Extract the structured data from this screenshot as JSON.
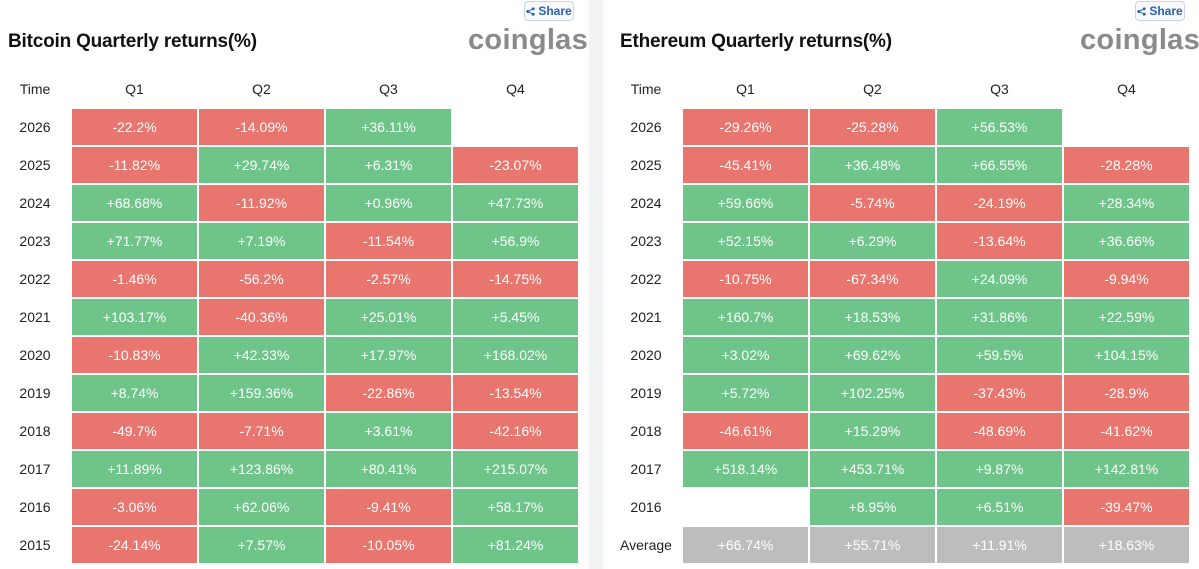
{
  "colors": {
    "negative": "#e8766f",
    "positive": "#6fc48a",
    "average": "#bdbdbd",
    "brand": "#8a8a8a"
  },
  "icons": {
    "share": "share-icon"
  },
  "panels": [
    {
      "title": "Bitcoin Quarterly returns(%)",
      "brand": "coinglass",
      "share_label": "Share",
      "headers": [
        "Time",
        "Q1",
        "Q2",
        "Q3",
        "Q4"
      ],
      "rows": [
        {
          "label": "2026",
          "values": [
            "-22.2%",
            "-14.09%",
            "+36.11%",
            ""
          ]
        },
        {
          "label": "2025",
          "values": [
            "-11.82%",
            "+29.74%",
            "+6.31%",
            "-23.07%"
          ]
        },
        {
          "label": "2024",
          "values": [
            "+68.68%",
            "-11.92%",
            "+0.96%",
            "+47.73%"
          ]
        },
        {
          "label": "2023",
          "values": [
            "+71.77%",
            "+7.19%",
            "-11.54%",
            "+56.9%"
          ]
        },
        {
          "label": "2022",
          "values": [
            "-1.46%",
            "-56.2%",
            "-2.57%",
            "-14.75%"
          ]
        },
        {
          "label": "2021",
          "values": [
            "+103.17%",
            "-40.36%",
            "+25.01%",
            "+5.45%"
          ]
        },
        {
          "label": "2020",
          "values": [
            "-10.83%",
            "+42.33%",
            "+17.97%",
            "+168.02%"
          ]
        },
        {
          "label": "2019",
          "values": [
            "+8.74%",
            "+159.36%",
            "-22.86%",
            "-13.54%"
          ]
        },
        {
          "label": "2018",
          "values": [
            "-49.7%",
            "-7.71%",
            "+3.61%",
            "-42.16%"
          ]
        },
        {
          "label": "2017",
          "values": [
            "+11.89%",
            "+123.86%",
            "+80.41%",
            "+215.07%"
          ]
        },
        {
          "label": "2016",
          "values": [
            "-3.06%",
            "+62.06%",
            "-9.41%",
            "+58.17%"
          ]
        },
        {
          "label": "2015",
          "values": [
            "-24.14%",
            "+7.57%",
            "-10.05%",
            "+81.24%"
          ]
        }
      ]
    },
    {
      "title": "Ethereum Quarterly returns(%)",
      "brand": "coinglass",
      "share_label": "Share",
      "headers": [
        "Time",
        "Q1",
        "Q2",
        "Q3",
        "Q4"
      ],
      "rows": [
        {
          "label": "2026",
          "values": [
            "-29.26%",
            "-25.28%",
            "+56.53%",
            ""
          ]
        },
        {
          "label": "2025",
          "values": [
            "-45.41%",
            "+36.48%",
            "+66.55%",
            "-28.28%"
          ]
        },
        {
          "label": "2024",
          "values": [
            "+59.66%",
            "-5.74%",
            "-24.19%",
            "+28.34%"
          ]
        },
        {
          "label": "2023",
          "values": [
            "+52.15%",
            "+6.29%",
            "-13.64%",
            "+36.66%"
          ]
        },
        {
          "label": "2022",
          "values": [
            "-10.75%",
            "-67.34%",
            "+24.09%",
            "-9.94%"
          ]
        },
        {
          "label": "2021",
          "values": [
            "+160.7%",
            "+18.53%",
            "+31.86%",
            "+22.59%"
          ]
        },
        {
          "label": "2020",
          "values": [
            "+3.02%",
            "+69.62%",
            "+59.5%",
            "+104.15%"
          ]
        },
        {
          "label": "2019",
          "values": [
            "+5.72%",
            "+102.25%",
            "-37.43%",
            "-28.9%"
          ]
        },
        {
          "label": "2018",
          "values": [
            "-46.61%",
            "+15.29%",
            "-48.69%",
            "-41.62%"
          ]
        },
        {
          "label": "2017",
          "values": [
            "+518.14%",
            "+453.71%",
            "+9.87%",
            "+142.81%"
          ]
        },
        {
          "label": "2016",
          "values": [
            "",
            "+8.95%",
            "+6.51%",
            "-39.47%"
          ]
        },
        {
          "label": "Average",
          "values": [
            "+66.74%",
            "+55.71%",
            "+11.91%",
            "+18.63%"
          ],
          "kind": "average"
        }
      ]
    }
  ]
}
